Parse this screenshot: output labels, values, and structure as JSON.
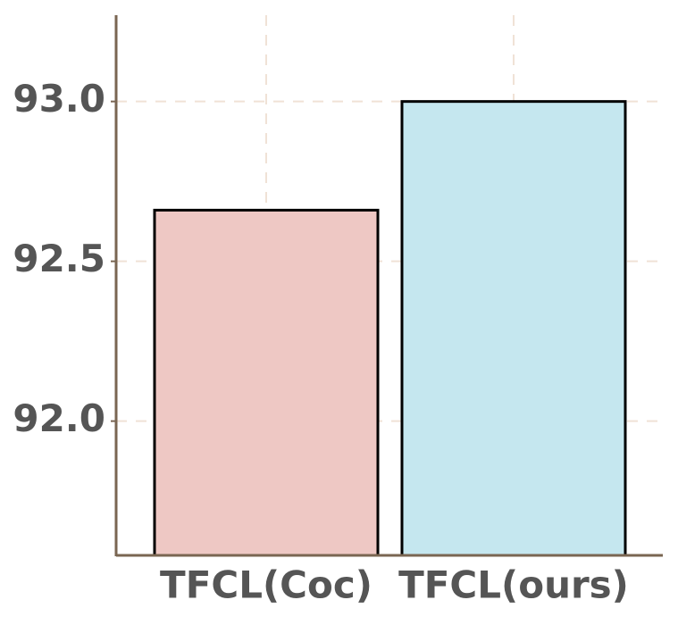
{
  "chart_data": {
    "type": "bar",
    "categories": [
      "TFCL(Coc)",
      "TFCL(ours)"
    ],
    "values": [
      92.66,
      93.0
    ],
    "colors": [
      "#eec8c4",
      "#c5e7ef"
    ],
    "ylim": [
      91.58,
      93.27
    ],
    "yticks": [
      {
        "value": 92.0,
        "label": "92.0"
      },
      {
        "value": 92.5,
        "label": "92.5"
      },
      {
        "value": 93.0,
        "label": "93.0"
      }
    ],
    "grid": true
  }
}
